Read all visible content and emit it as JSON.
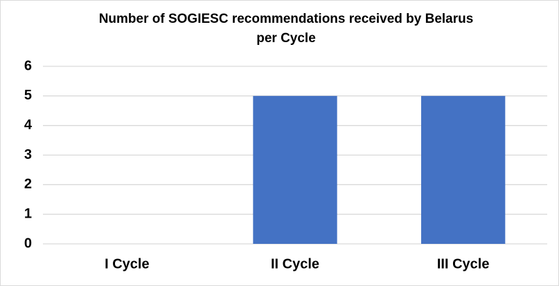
{
  "chart_data": {
    "type": "bar",
    "title": "Number of SOGIESC recommendations received by Belarus per Cycle",
    "categories": [
      "I Cycle",
      "II Cycle",
      "III Cycle"
    ],
    "values": [
      0,
      5,
      5
    ],
    "color": "#4472c4",
    "ylim": [
      0,
      6
    ],
    "yticks": [
      0,
      1,
      2,
      3,
      4,
      5,
      6
    ],
    "grid": true
  }
}
